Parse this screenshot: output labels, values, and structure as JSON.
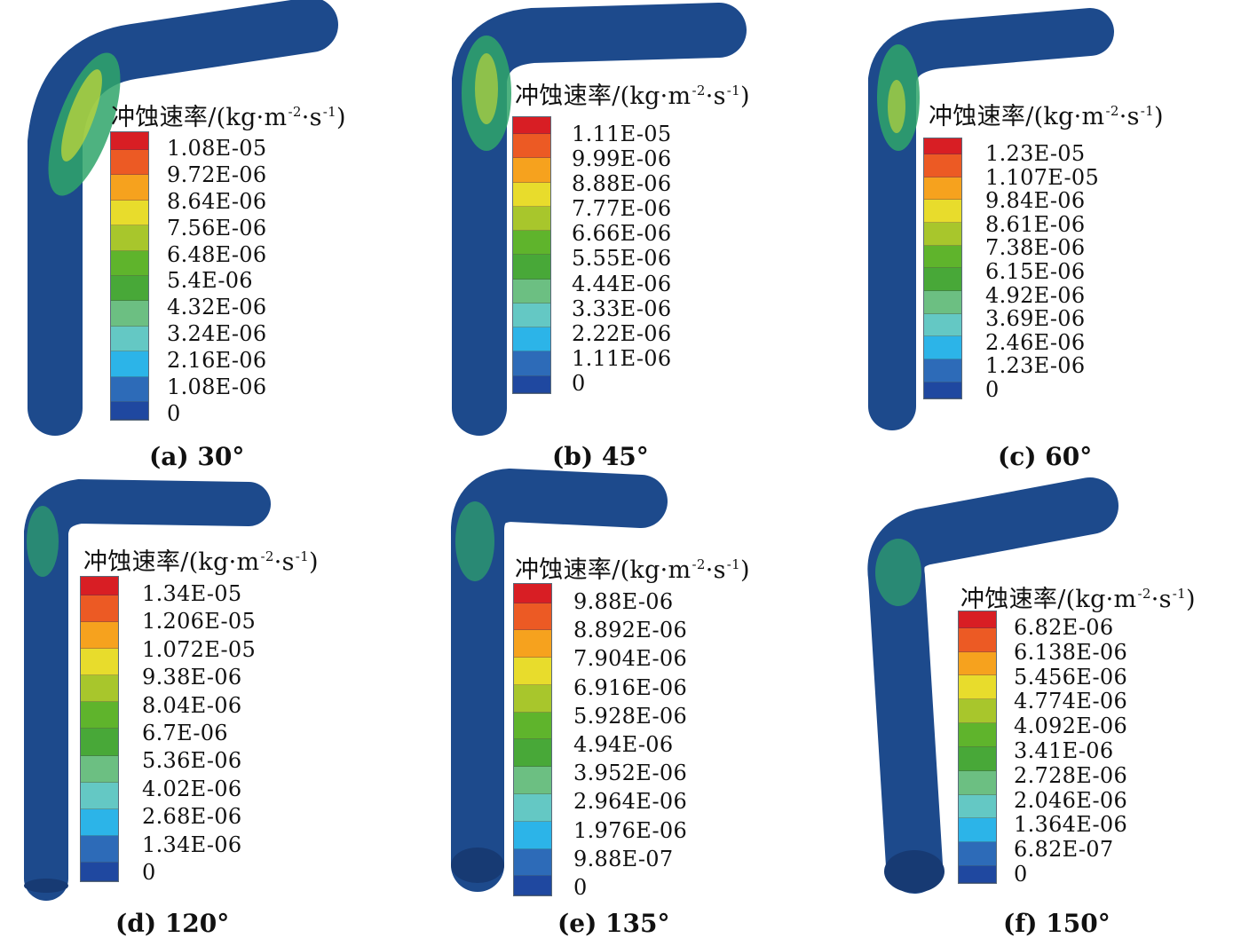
{
  "legend_title": {
    "text": "冲蚀速率/(kg·m",
    "exp1": "-2",
    "mid": "·s",
    "exp2": "-1",
    "close": ")"
  },
  "colorbar_colors": [
    "#d81e24",
    "#ec5a24",
    "#f6a21e",
    "#e8dc2c",
    "#a8c62c",
    "#5fb42c",
    "#48a838",
    "#6cbf82",
    "#64c8c4",
    "#2cb4e8",
    "#2d6bb8",
    "#1f48a0"
  ],
  "panels": [
    {
      "caption": "(a) 30°",
      "labels": [
        "1.08E-05",
        "9.72E-06",
        "8.64E-06",
        "7.56E-06",
        "6.48E-06",
        "5.4E-06",
        "4.32E-06",
        "3.24E-06",
        "2.16E-06",
        "1.08E-06",
        "0"
      ]
    },
    {
      "caption": "(b) 45°",
      "labels": [
        "1.11E-05",
        "9.99E-06",
        "8.88E-06",
        "7.77E-06",
        "6.66E-06",
        "5.55E-06",
        "4.44E-06",
        "3.33E-06",
        "2.22E-06",
        "1.11E-06",
        "0"
      ]
    },
    {
      "caption": "(c) 60°",
      "labels": [
        "1.23E-05",
        "1.107E-05",
        "9.84E-06",
        "8.61E-06",
        "7.38E-06",
        "6.15E-06",
        "4.92E-06",
        "3.69E-06",
        "2.46E-06",
        "1.23E-06",
        "0"
      ]
    },
    {
      "caption": "(d) 120°",
      "labels": [
        "1.34E-05",
        "1.206E-05",
        "1.072E-05",
        "9.38E-06",
        "8.04E-06",
        "6.7E-06",
        "5.36E-06",
        "4.02E-06",
        "2.68E-06",
        "1.34E-06",
        "0"
      ]
    },
    {
      "caption": "(e) 135°",
      "labels": [
        "9.88E-06",
        "8.892E-06",
        "7.904E-06",
        "6.916E-06",
        "5.928E-06",
        "4.94E-06",
        "3.952E-06",
        "2.964E-06",
        "1.976E-06",
        "9.88E-07",
        "0"
      ]
    },
    {
      "caption": "(f) 150°",
      "labels": [
        "6.82E-06",
        "6.138E-06",
        "5.456E-06",
        "4.774E-06",
        "4.092E-06",
        "3.41E-06",
        "2.728E-06",
        "2.046E-06",
        "1.364E-06",
        "6.82E-07",
        "0"
      ]
    }
  ]
}
